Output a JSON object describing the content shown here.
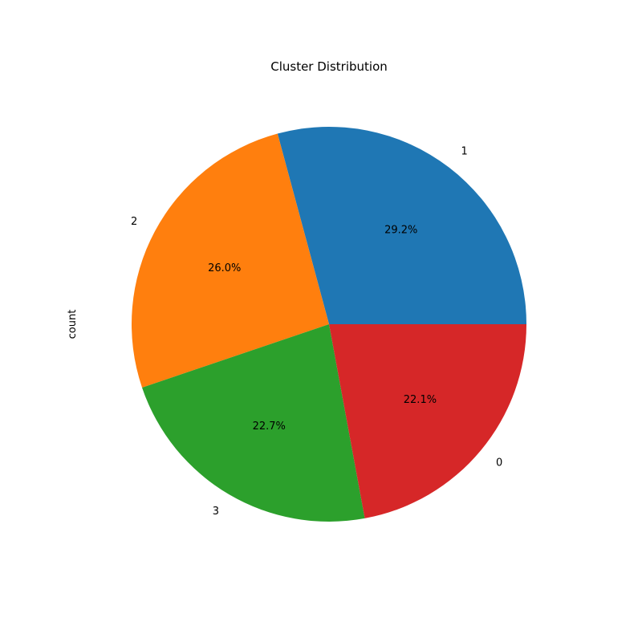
{
  "chart_data": {
    "type": "pie",
    "title": "Cluster Distribution",
    "ylabel": "count",
    "start_angle_deg": 0,
    "direction": "counterclockwise",
    "slices": [
      {
        "label": "1",
        "percent": 29.2,
        "pct_text": "29.2%",
        "color": "#1f77b4"
      },
      {
        "label": "2",
        "percent": 26.0,
        "pct_text": "26.0%",
        "color": "#ff7f0e"
      },
      {
        "label": "3",
        "percent": 22.7,
        "pct_text": "22.7%",
        "color": "#2ca02c"
      },
      {
        "label": "0",
        "percent": 22.1,
        "pct_text": "22.1%",
        "color": "#d62728"
      }
    ]
  }
}
